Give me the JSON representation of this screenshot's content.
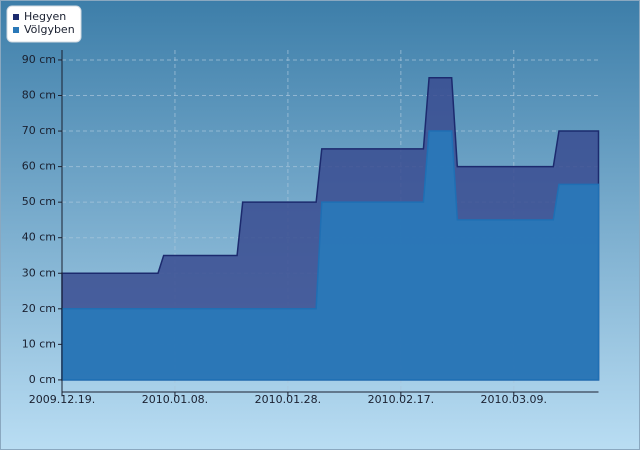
{
  "chart_data": {
    "type": "area",
    "x": [
      "2009-12-19",
      "2010-01-05",
      "2010-01-06",
      "2010-01-19",
      "2010-01-20",
      "2010-02-02",
      "2010-02-03",
      "2010-02-21",
      "2010-02-22",
      "2010-02-26",
      "2010-02-27",
      "2010-03-16",
      "2010-03-17",
      "2010-03-24"
    ],
    "series": [
      {
        "name": "Hegyen",
        "color": "#1c2a6e",
        "fill": "#3a4c90",
        "values": [
          30,
          30,
          35,
          35,
          50,
          50,
          65,
          65,
          85,
          85,
          60,
          60,
          70,
          70
        ]
      },
      {
        "name": "Völgyben",
        "color": "#1f6fb4",
        "fill": "#2a78b8",
        "values": [
          20,
          20,
          20,
          20,
          20,
          20,
          50,
          50,
          70,
          70,
          45,
          45,
          55,
          55
        ]
      }
    ],
    "xlim": [
      "2009-12-19",
      "2010-03-24"
    ],
    "xticks": [
      {
        "value": "2009-12-19",
        "label": "2009.12.19."
      },
      {
        "value": "2010-01-08",
        "label": "2010.01.08."
      },
      {
        "value": "2010-01-28",
        "label": "2010.01.28."
      },
      {
        "value": "2010-02-17",
        "label": "2010.02.17."
      },
      {
        "value": "2010-03-09",
        "label": "2010.03.09."
      }
    ],
    "ylim": [
      -3.4,
      92.8
    ],
    "yticks": [
      {
        "value": 0,
        "label": "0 cm"
      },
      {
        "value": 10,
        "label": "10 cm"
      },
      {
        "value": 20,
        "label": "20 cm"
      },
      {
        "value": 30,
        "label": "30 cm"
      },
      {
        "value": 40,
        "label": "40 cm"
      },
      {
        "value": 50,
        "label": "50 cm"
      },
      {
        "value": 60,
        "label": "60 cm"
      },
      {
        "value": 70,
        "label": "70 cm"
      },
      {
        "value": 80,
        "label": "80 cm"
      },
      {
        "value": 90,
        "label": "90 cm"
      }
    ],
    "grid": true,
    "legend": "top-left"
  }
}
